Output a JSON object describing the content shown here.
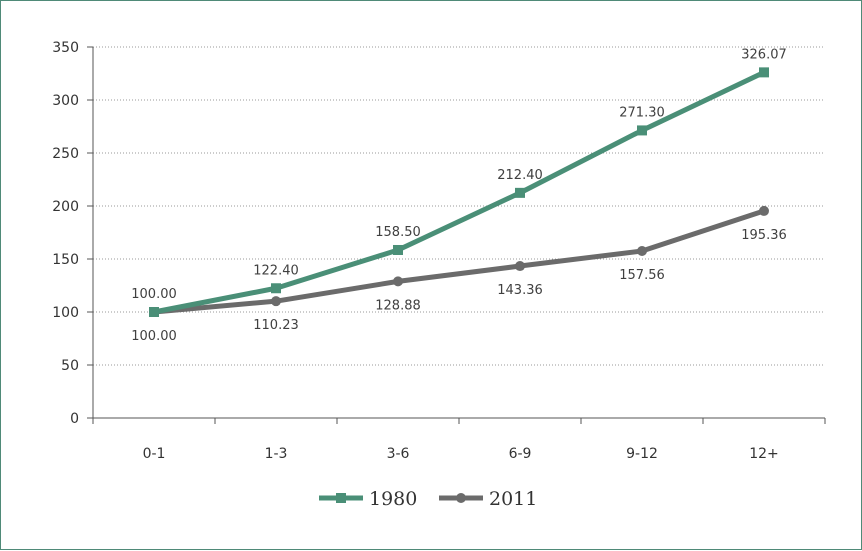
{
  "chart_data": {
    "type": "line",
    "categories": [
      "0-1",
      "1-3",
      "3-6",
      "6-9",
      "9-12",
      "12+"
    ],
    "series": [
      {
        "name": "1980",
        "values": [
          100.0,
          122.4,
          158.5,
          212.4,
          271.3,
          326.07
        ],
        "color": "#4a8f77",
        "marker": "square",
        "label_position": "above"
      },
      {
        "name": "2011",
        "values": [
          100.0,
          110.23,
          128.88,
          143.36,
          157.56,
          195.36
        ],
        "color": "#6b6b6b",
        "marker": "circle",
        "label_position": "below"
      }
    ],
    "yticks": [
      0,
      50,
      100,
      150,
      200,
      250,
      300,
      350
    ],
    "ylim": [
      0,
      350
    ],
    "title": "",
    "xlabel": "",
    "ylabel": "",
    "grid": "horizontal-dotted",
    "legend_position": "bottom-center"
  }
}
